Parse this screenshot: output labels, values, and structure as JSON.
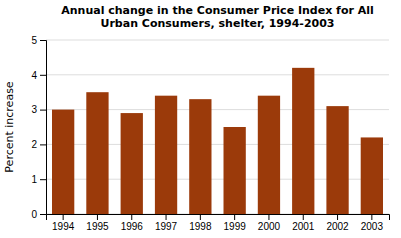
{
  "chart_data": {
    "type": "bar",
    "title": "Annual change in the Consumer Price Index for All\nUrban Consumers, shelter, 1994-2003",
    "ylabel": "Percent increase",
    "categories": [
      "1994",
      "1995",
      "1996",
      "1997",
      "1998",
      "1999",
      "2000",
      "2001",
      "2002",
      "2003"
    ],
    "values": [
      3.0,
      3.5,
      2.9,
      3.4,
      3.3,
      2.5,
      3.4,
      4.2,
      3.1,
      2.2
    ],
    "color": "#9B3A0A",
    "ylim": [
      0,
      5
    ],
    "yticks": [
      0,
      1,
      2,
      3,
      4,
      5
    ],
    "grid": true
  }
}
